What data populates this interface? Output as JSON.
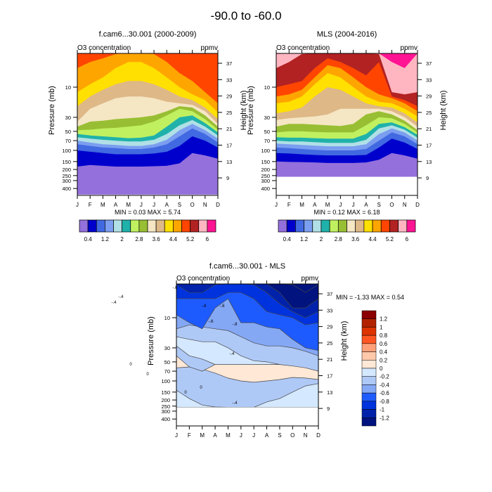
{
  "figure_title": "-90.0 to -60.0",
  "chart_data": [
    {
      "type": "heatmap",
      "subtype": "filled-contour",
      "id": "model",
      "title": "f.cam6...30.001 (2000-2009)",
      "left_label": "O3 concentration",
      "right_label": "ppmv",
      "xlabel": "",
      "ylabel": "Pressure (mb)",
      "ylabel_right": "Height (km)",
      "x_ticks": [
        "J",
        "F",
        "M",
        "A",
        "M",
        "J",
        "J",
        "A",
        "S",
        "O",
        "N",
        "D"
      ],
      "y_ticks": [
        "10",
        "30",
        "50",
        "70",
        "100",
        "150",
        "200",
        "250",
        "300",
        "400"
      ],
      "y_ticks_right": [
        "37",
        "33",
        "29",
        "25",
        "21",
        "17",
        "13",
        "9"
      ],
      "y_tick_values": [
        10,
        30,
        50,
        70,
        100,
        150,
        200,
        250,
        300,
        400
      ],
      "y_tick_values_right": [
        37,
        33,
        29,
        25,
        21,
        17,
        13,
        9
      ],
      "ylim_mb": [
        2,
        500
      ],
      "data_bottom_mb": 500,
      "stats": "MIN =  0.03  MAX =  5.74",
      "min": 0.03,
      "max": 5.74,
      "colorbar": {
        "orientation": "horizontal",
        "labels": [
          "0.4",
          "1.2",
          "2",
          "2.8",
          "3.6",
          "4.4",
          "5.2",
          "6"
        ],
        "colors": [
          "#9370DB",
          "#0000CD",
          "#4169E1",
          "#7B9EF0",
          "#B0E0E6",
          "#20B2AA",
          "#C0F060",
          "#98BF33",
          "#F5E6C4",
          "#DEB887",
          "#FFE000",
          "#FFA500",
          "#FF4500",
          "#B22222",
          "#FFB6C1",
          "#FF1493"
        ]
      },
      "level_boundaries_mb_by_month": [
        [
          180,
          170,
          175,
          180,
          180,
          180,
          178,
          175,
          160,
          110,
          120,
          135
        ],
        [
          100,
          105,
          110,
          115,
          115,
          115,
          112,
          105,
          85,
          60,
          70,
          90
        ],
        [
          80,
          85,
          90,
          92,
          95,
          95,
          90,
          80,
          60,
          45,
          55,
          75
        ],
        [
          70,
          75,
          80,
          82,
          85,
          85,
          80,
          68,
          48,
          38,
          48,
          65
        ],
        [
          62,
          65,
          68,
          70,
          72,
          72,
          68,
          55,
          40,
          33,
          42,
          58
        ],
        [
          55,
          58,
          60,
          62,
          64,
          63,
          58,
          42,
          30,
          28,
          37,
          52
        ],
        [
          48,
          47,
          45,
          44,
          42,
          40,
          35,
          28,
          22,
          24,
          32,
          47
        ],
        [
          42,
          35,
          34,
          32,
          31,
          30,
          28,
          24,
          20,
          21,
          28,
          42
        ],
        [
          35,
          22,
          18,
          15,
          14,
          14,
          15,
          17,
          18,
          19,
          24,
          38
        ],
        [
          20,
          14,
          11,
          9,
          8,
          8,
          9,
          11,
          14,
          16,
          21,
          32
        ],
        [
          12,
          9,
          7,
          5,
          4,
          4,
          5,
          7,
          10,
          13,
          16,
          25
        ],
        [
          5,
          4,
          3.5,
          3,
          2,
          2,
          3,
          4,
          6,
          8,
          12,
          18
        ],
        [
          2,
          2,
          2,
          2,
          2,
          2,
          2,
          2,
          2,
          2,
          2,
          2
        ],
        [
          2,
          2,
          2,
          2,
          2,
          2,
          2,
          2,
          2,
          2,
          2,
          2
        ],
        [
          2,
          2,
          2,
          2,
          2,
          2,
          2,
          2,
          2,
          2,
          2,
          2
        ]
      ],
      "top_band_overrides": {
        "upper_layers_by_month": [
          [
            3,
            2,
            2,
            2,
            2,
            2,
            2,
            2.5,
            2,
            2.5,
            3,
            3
          ],
          [
            2,
            4,
            5,
            4,
            3,
            2,
            2,
            3,
            9,
            11,
            7,
            4
          ]
        ]
      }
    },
    {
      "type": "heatmap",
      "subtype": "filled-contour",
      "id": "obs",
      "title": "MLS (2004-2016)",
      "left_label": "O3 concentration",
      "right_label": "ppmv",
      "ylabel": "Pressure (mb)",
      "ylabel_right": "Height (km)",
      "x_ticks": [
        "J",
        "F",
        "M",
        "A",
        "M",
        "J",
        "J",
        "A",
        "S",
        "O",
        "N",
        "D"
      ],
      "y_ticks": [
        "10",
        "30",
        "50",
        "70",
        "100",
        "150",
        "200",
        "250",
        "300",
        "400"
      ],
      "y_ticks_right": [
        "37",
        "33",
        "29",
        "25",
        "21",
        "17",
        "13",
        "9"
      ],
      "y_tick_values": [
        10,
        30,
        50,
        70,
        100,
        150,
        200,
        250,
        300,
        400
      ],
      "y_tick_values_right": [
        37,
        33,
        29,
        25,
        21,
        17,
        13,
        9
      ],
      "ylim_mb": [
        2,
        500
      ],
      "data_bottom_mb": 261,
      "stats": "MIN =  0.12  MAX =  6.18",
      "min": 0.12,
      "max": 6.18,
      "colorbar": {
        "orientation": "horizontal",
        "labels": [
          "0.4",
          "1.2",
          "2",
          "2.8",
          "3.6",
          "4.4",
          "5.2",
          "6"
        ],
        "colors": [
          "#9370DB",
          "#0000CD",
          "#4169E1",
          "#7B9EF0",
          "#B0E0E6",
          "#20B2AA",
          "#C0F060",
          "#98BF33",
          "#F5E6C4",
          "#DEB887",
          "#FFE000",
          "#FFA500",
          "#FF4500",
          "#B22222",
          "#FFB6C1",
          "#FF1493"
        ]
      },
      "level_boundaries_mb_by_month": [
        [
          150,
          152,
          153,
          155,
          158,
          158,
          158,
          155,
          140,
          110,
          120,
          135
        ],
        [
          110,
          112,
          115,
          118,
          120,
          120,
          120,
          118,
          90,
          65,
          75,
          95
        ],
        [
          90,
          92,
          95,
          98,
          100,
          100,
          100,
          95,
          70,
          52,
          60,
          80
        ],
        [
          78,
          80,
          82,
          84,
          86,
          86,
          86,
          80,
          55,
          45,
          52,
          70
        ],
        [
          70,
          72,
          72,
          74,
          76,
          76,
          76,
          68,
          45,
          40,
          47,
          63
        ],
        [
          62,
          63,
          63,
          64,
          65,
          65,
          65,
          55,
          38,
          36,
          43,
          57
        ],
        [
          52,
          50,
          50,
          51,
          52,
          52,
          52,
          40,
          30,
          31,
          38,
          52
        ],
        [
          42,
          38,
          38,
          39,
          40,
          41,
          38,
          27,
          24,
          27,
          34,
          48
        ],
        [
          33,
          31,
          30,
          29,
          27,
          22,
          22,
          22,
          22,
          24,
          30,
          42
        ],
        [
          26,
          24,
          21,
          14,
          10,
          11,
          14,
          18,
          20,
          21,
          26,
          36
        ],
        [
          18,
          17,
          14,
          9,
          6,
          7,
          10,
          14,
          17,
          18,
          22,
          29
        ],
        [
          14,
          13,
          11,
          7,
          4.5,
          5,
          7,
          10,
          13,
          15,
          18,
          24
        ],
        [
          10,
          9,
          8,
          5,
          3.5,
          4,
          5,
          6.5,
          4,
          14,
          16,
          20
        ],
        [
          5,
          4,
          3,
          2,
          2,
          2,
          2,
          2,
          3,
          12,
          13,
          12
        ],
        [
          3,
          2.6,
          2,
          2,
          2,
          2,
          2,
          2,
          2,
          4,
          5,
          2
        ]
      ]
    },
    {
      "type": "heatmap",
      "subtype": "line-contour-filled",
      "id": "diff",
      "title": "f.cam6...30.001 - MLS",
      "left_label": "O3 concentration",
      "right_label": "ppmv",
      "ylabel": "Pressure (mb)",
      "ylabel_right": "Height (km)",
      "x_ticks": [
        "J",
        "F",
        "M",
        "A",
        "M",
        "J",
        "J",
        "A",
        "S",
        "O",
        "N",
        "D"
      ],
      "y_ticks": [
        "10",
        "30",
        "50",
        "70",
        "100",
        "150",
        "200",
        "250",
        "300",
        "400"
      ],
      "y_ticks_right": [
        "37",
        "33",
        "29",
        "25",
        "21",
        "17",
        "13",
        "9"
      ],
      "y_tick_values": [
        10,
        30,
        50,
        70,
        100,
        150,
        200,
        250,
        300,
        400
      ],
      "y_tick_values_right": [
        37,
        33,
        29,
        25,
        21,
        17,
        13,
        9
      ],
      "ylim_mb": [
        2,
        500
      ],
      "data_bottom_mb": 261,
      "stats": "MIN = -1.33  MAX =  0.54",
      "min": -1.33,
      "max": 0.54,
      "contour_labels": [
        "-.4",
        "-.4",
        "-.6",
        "-.8",
        "-.6",
        "-.6",
        "-.8",
        "-.4",
        "0",
        "0",
        "0",
        "0",
        "-.4"
      ],
      "colorbar": {
        "orientation": "vertical",
        "labels": [
          "1.2",
          "1",
          "0.8",
          "0.6",
          "0.4",
          "0.2",
          "0",
          "-0.2",
          "-0.4",
          "-0.6",
          "-0.8",
          "-1",
          "-1.2"
        ],
        "colors": [
          "#8B0000",
          "#B22200",
          "#DD3300",
          "#FF5522",
          "#FFA07A",
          "#FFC8AA",
          "#FFE8D6",
          "#D4E8FF",
          "#AFC9F7",
          "#85A8F5",
          "#1E5BFF",
          "#0033DD",
          "#0022AA",
          "#00137F"
        ]
      },
      "level_boundaries_mb_by_month": [
        [
          261,
          261,
          261,
          261,
          261,
          261,
          261,
          261,
          261,
          261,
          261,
          261
        ],
        [
          140,
          190,
          240,
          258,
          261,
          261,
          261,
          215,
          190,
          150,
          120,
          110
        ],
        [
          62,
          60,
          65,
          75,
          90,
          100,
          105,
          100,
          95,
          88,
          90,
          95
        ],
        [
          40,
          60,
          70,
          55,
          55,
          55,
          55,
          55,
          55,
          55,
          60,
          65
        ],
        [
          28,
          40,
          45,
          55,
          55,
          55,
          55,
          55,
          55,
          55,
          60,
          65
        ],
        [
          20,
          22,
          24,
          24,
          30,
          40,
          48,
          50,
          55,
          58,
          62,
          70
        ],
        [
          15,
          13,
          14,
          15,
          16,
          20,
          25,
          28,
          28,
          30,
          34,
          40
        ],
        [
          9,
          12,
          15,
          7,
          5,
          12,
          12,
          14,
          15,
          22,
          30,
          33
        ],
        [
          5,
          5,
          5,
          5,
          4,
          4,
          5,
          8,
          9,
          10,
          13,
          12
        ],
        [
          3,
          4,
          4,
          3,
          2,
          2,
          3,
          4,
          6,
          8,
          10,
          8
        ],
        [
          2,
          2.5,
          2,
          2,
          2,
          2,
          2,
          2.5,
          4,
          7,
          7,
          5
        ],
        [
          2,
          2,
          2,
          2,
          2,
          2,
          2,
          2,
          2,
          3,
          4,
          3
        ],
        [
          2,
          2,
          2,
          2,
          2,
          2,
          2,
          2,
          2,
          2,
          2,
          2
        ]
      ],
      "band_colors": [
        "#FFE8D6",
        "#D4E8FF",
        "#AFC9F7",
        "#FFE8D6",
        "#AFC9F7",
        "#D4E8FF",
        "#AFC9F7",
        "#85A8F5",
        "#1E5BFF",
        "#0033DD",
        "#0022AA",
        "#00137F",
        "#00137F"
      ]
    }
  ]
}
